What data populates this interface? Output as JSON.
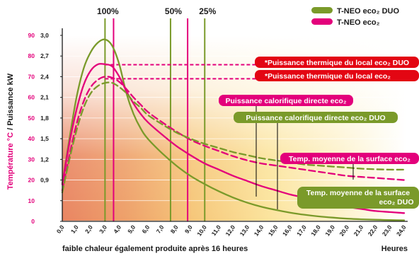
{
  "chart_data": {
    "type": "line",
    "xlabel": "faible chaleur également produite après 16 heures",
    "xlabel_right": "Heures",
    "ylabel_temp": "Température °C",
    "ylabel_sep": " / ",
    "ylabel_power": "Puissance kW",
    "x_ticks": [
      "0,0",
      "1,0",
      "2,0",
      "3,0",
      "4,0",
      "5,0",
      "6,0",
      "7,0",
      "8,0",
      "9,0",
      "10,0",
      "11,0",
      "12,0",
      "13,0",
      "14,0",
      "15,0",
      "16,0",
      "17,0",
      "18,0",
      "19,0",
      "20,0",
      "21,0",
      "22,0",
      "23,0",
      "24,0"
    ],
    "xlim": [
      0,
      24
    ],
    "ylim": [
      0,
      90
    ],
    "y_ticks": [
      {
        "temp": "0",
        "kw": ""
      },
      {
        "temp": "10",
        "kw": ""
      },
      {
        "temp": "20",
        "kw": "0,9"
      },
      {
        "temp": "30",
        "kw": "1,2"
      },
      {
        "temp": "40",
        "kw": "1,5"
      },
      {
        "temp": "50",
        "kw": "1,8"
      },
      {
        "temp": "60",
        "kw": "2,1"
      },
      {
        "temp": "70",
        "kw": "2,4"
      },
      {
        "temp": "80",
        "kw": "2,7"
      },
      {
        "temp": "90",
        "kw": "3,0"
      }
    ],
    "vlines": [
      {
        "x": 3.0,
        "label": "100%",
        "color": "#7a9a2a"
      },
      {
        "x": 3.6,
        "label": "",
        "color": "#e3007b"
      },
      {
        "x": 7.6,
        "label": "50%",
        "color": "#7a9a2a"
      },
      {
        "x": 8.8,
        "label": "",
        "color": "#e3007b"
      },
      {
        "x": 10.0,
        "label": "25%",
        "color": "#7a9a2a"
      }
    ],
    "hlines": [
      {
        "y": 75.8,
        "color": "#e3007b"
      },
      {
        "y": 69.0,
        "color": "#e3007b"
      }
    ],
    "series": [
      {
        "name": "T-NEO eco₂ DUO",
        "color": "#7a9a2a",
        "dash": false,
        "x": [
          0,
          0.5,
          1,
          1.5,
          2,
          2.5,
          3,
          3.5,
          4,
          4.5,
          5,
          5.5,
          6,
          7,
          8,
          9,
          10,
          11,
          12,
          13,
          14,
          15,
          16,
          17,
          18,
          19,
          20,
          21,
          22,
          23,
          24
        ],
        "y": [
          18,
          40,
          60,
          74,
          82,
          86.5,
          88,
          85,
          76,
          62,
          52,
          45,
          40,
          33,
          27,
          22,
          18,
          14.5,
          11.5,
          9,
          7,
          5.5,
          4.2,
          3.2,
          2.4,
          1.8,
          1.3,
          1,
          0.8,
          0.6,
          0.5
        ]
      },
      {
        "name": "T-NEO eco₂",
        "color": "#e3007b",
        "dash": false,
        "x": [
          0,
          0.5,
          1,
          1.5,
          2,
          2.5,
          3,
          3.5,
          4,
          4.5,
          5,
          5.5,
          6,
          7,
          8,
          9,
          10,
          11,
          12,
          13,
          14,
          15,
          16,
          17,
          18,
          19,
          20,
          21,
          22,
          23,
          24
        ],
        "y": [
          18,
          38,
          54,
          66,
          73,
          76,
          76,
          75,
          70,
          63,
          57,
          52,
          48,
          42,
          36.5,
          32,
          28,
          25,
          22,
          19.5,
          17,
          15,
          13,
          11.5,
          10,
          8.5,
          7,
          6,
          5,
          4.5,
          4
        ]
      },
      {
        "name": "",
        "color": "#e3007b",
        "dash": true,
        "x": [
          0,
          0.5,
          1,
          1.5,
          2,
          2.5,
          3,
          3.5,
          4,
          4.5,
          5,
          5.5,
          6,
          7,
          8,
          9,
          10,
          11,
          12,
          13,
          14,
          15,
          16,
          17,
          18,
          19,
          20,
          21,
          22,
          23,
          24
        ],
        "y": [
          15,
          32,
          47,
          58,
          65,
          68.5,
          70,
          69.5,
          67.5,
          64,
          60,
          56.5,
          53,
          48,
          43.5,
          39.5,
          36.5,
          34,
          31.5,
          29.5,
          28,
          27,
          26,
          25,
          24,
          23,
          22,
          21.5,
          21,
          20.5,
          20
        ]
      },
      {
        "name": "",
        "color": "#7a9a2a",
        "dash": true,
        "x": [
          0,
          0.5,
          1,
          1.5,
          2,
          2.5,
          3,
          3.5,
          4,
          4.5,
          5,
          5.5,
          6,
          7,
          8,
          9,
          10,
          11,
          12,
          13,
          14,
          15,
          16,
          17,
          18,
          19,
          20,
          21,
          22,
          23,
          24
        ],
        "y": [
          14,
          30,
          44,
          55,
          62,
          65.5,
          67,
          67,
          65,
          62,
          58,
          55,
          51.5,
          47,
          43,
          40,
          37.5,
          35.5,
          33.5,
          32,
          30.5,
          29.5,
          28.5,
          27.5,
          27,
          26.5,
          26,
          25.5,
          25.2,
          25,
          25
        ]
      }
    ],
    "legend": [
      {
        "label": "T-NEO eco₂ DUO",
        "color": "#7a9a2a"
      },
      {
        "label": "T-NEO eco₂",
        "color": "#e3007b"
      }
    ],
    "callouts": [
      {
        "text": "*Puissance thermique du local eco₂ DUO",
        "color": "#e30613"
      },
      {
        "text": "*Puissance thermique du local eco₂",
        "color": "#e30613"
      },
      {
        "text": "Puissance calorifique directe eco₂",
        "color": "#e3007b"
      },
      {
        "text": "Puissance calorifique directe eco₂ DUO",
        "color": "#7a9a2a"
      },
      {
        "text": "Temp. moyenne de la surface eco₂",
        "color": "#e3007b"
      },
      {
        "text": "Temp. moyenne de la surface",
        "color": "#7a9a2a"
      },
      {
        "text": "eco₂ DUO",
        "color": "#7a9a2a"
      }
    ]
  }
}
